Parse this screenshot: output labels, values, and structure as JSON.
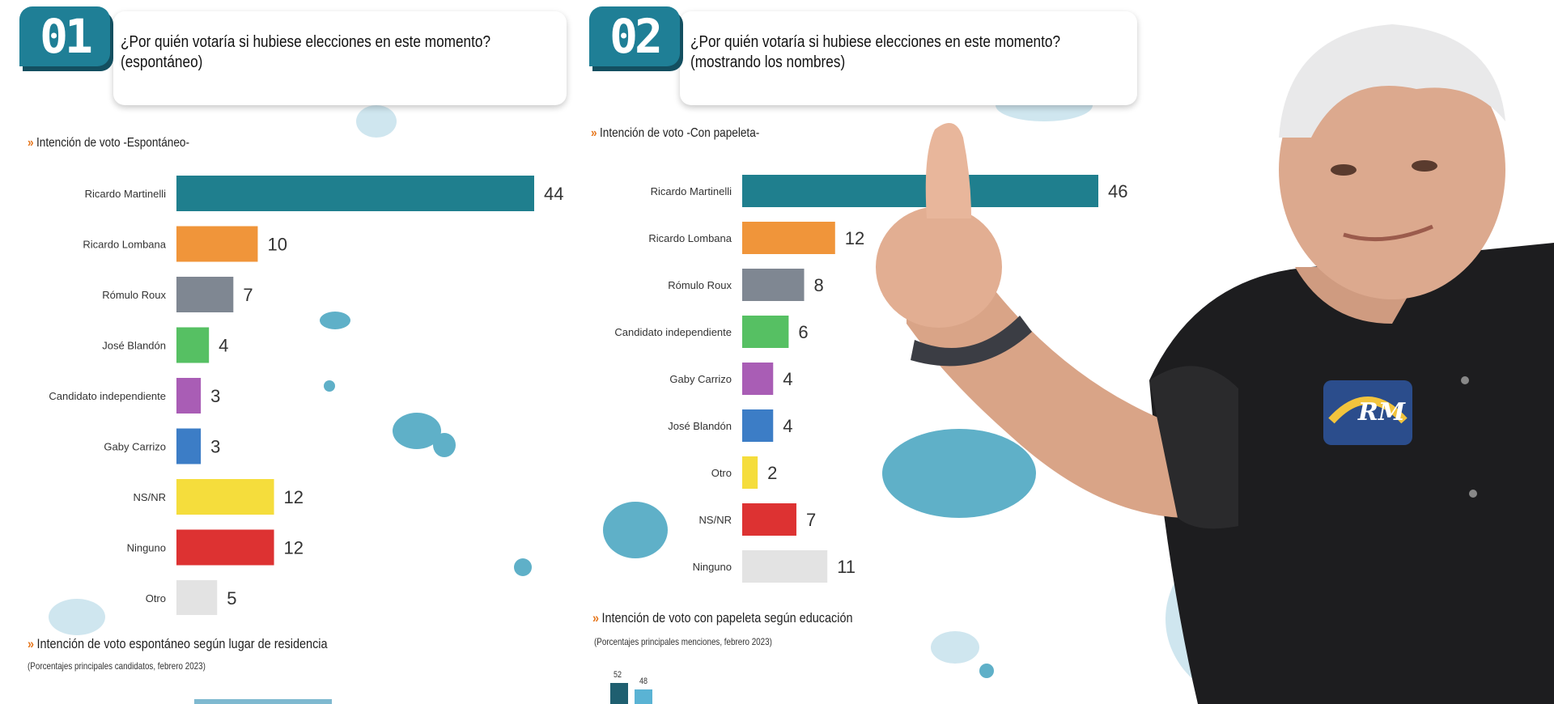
{
  "panel1": {
    "number": "01",
    "question_line1": "¿Por quién votaría si hubiese elecciones en este momento?",
    "question_line2": "(espontáneo)",
    "subtitle": "Intención de voto -Espontáneo-",
    "footer_title": "Intención de voto espontáneo según lugar de residencia",
    "footer_note": "(Porcentajes principales candidatos, febrero 2023)"
  },
  "panel2": {
    "number": "02",
    "question_line1": "¿Por quién votaría si hubiese elecciones en este momento?",
    "question_line2": "(mostrando los nombres)",
    "subtitle": "Intención de voto -Con papeleta-",
    "footer_title": "Intención de voto con papeleta según educación",
    "footer_note": "(Porcentajes principales menciones, febrero 2023)",
    "partial_values": [
      "52",
      "48"
    ]
  },
  "chart_data": [
    {
      "type": "bar",
      "orientation": "horizontal",
      "title": "Intención de voto -Espontáneo-",
      "categories": [
        "Ricardo Martinelli",
        "Ricardo Lombana",
        "Rómulo Roux",
        "José Blandón",
        "Candidato independiente",
        "Gaby Carrizo",
        "NS/NR",
        "Ninguno",
        "Otro"
      ],
      "values": [
        44,
        10,
        7,
        4,
        3,
        3,
        12,
        12,
        5
      ],
      "colors": [
        "#1f7f8e",
        "#f0953a",
        "#7f8792",
        "#56c063",
        "#a95db5",
        "#3c7dc6",
        "#f5dd3c",
        "#dd3232",
        "#e3e3e3"
      ],
      "xlim": [
        0,
        44
      ]
    },
    {
      "type": "bar",
      "orientation": "horizontal",
      "title": "Intención de voto -Con papeleta-",
      "categories": [
        "Ricardo Martinelli",
        "Ricardo Lombana",
        "Rómulo Roux",
        "Candidato independiente",
        "Gaby Carrizo",
        "José Blandón",
        "Otro",
        "NS/NR",
        "Ninguno"
      ],
      "values": [
        46,
        12,
        8,
        6,
        4,
        4,
        2,
        7,
        11
      ],
      "colors": [
        "#1f7f8e",
        "#f0953a",
        "#7f8792",
        "#56c063",
        "#a95db5",
        "#3c7dc6",
        "#f5dd3c",
        "#dd3232",
        "#e3e3e3"
      ],
      "xlim": [
        0,
        46
      ]
    }
  ],
  "colors": {
    "badge": "#1f7f96",
    "accent": "#e6761c",
    "splash": "#5fb0c8"
  },
  "photo": {
    "logo_text": "RM"
  }
}
